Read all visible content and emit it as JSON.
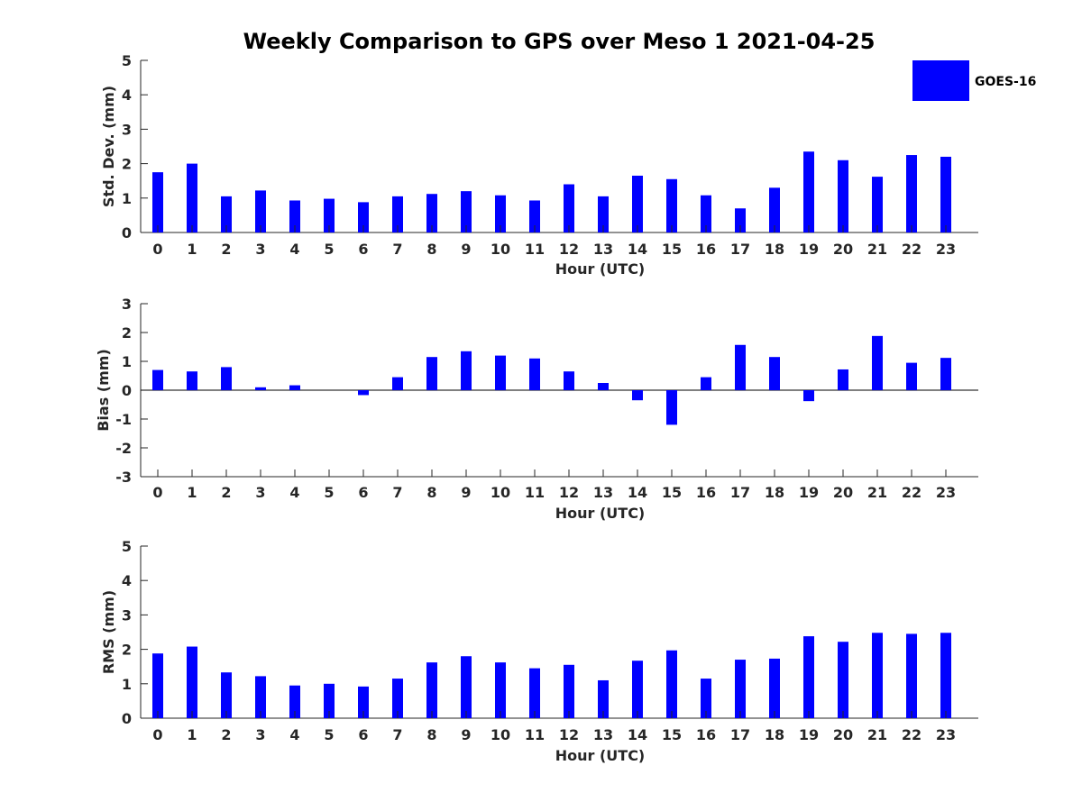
{
  "title": "Weekly Comparison to GPS over Meso 1 2021-04-25",
  "legend": {
    "label": "GOES-16",
    "color": "#0000ff",
    "placement": "top-right"
  },
  "chart_data": [
    {
      "type": "bar",
      "name": "std-dev",
      "categories": [
        "0",
        "1",
        "2",
        "3",
        "4",
        "5",
        "6",
        "7",
        "8",
        "9",
        "10",
        "11",
        "12",
        "13",
        "14",
        "15",
        "16",
        "17",
        "18",
        "19",
        "20",
        "21",
        "22",
        "23"
      ],
      "series": [
        {
          "name": "GOES-16",
          "values": [
            1.75,
            2.0,
            1.05,
            1.22,
            0.93,
            0.98,
            0.88,
            1.05,
            1.12,
            1.2,
            1.08,
            0.93,
            1.4,
            1.05,
            1.65,
            1.55,
            1.08,
            0.7,
            1.3,
            2.35,
            2.1,
            1.62,
            2.25,
            2.2
          ]
        }
      ],
      "xlabel": "Hour (UTC)",
      "ylabel": "Std. Dev. (mm)",
      "ylim": [
        0,
        5
      ],
      "yticks": [
        "0",
        "1",
        "2",
        "3",
        "4",
        "5"
      ],
      "color": "#0000ff"
    },
    {
      "type": "bar",
      "name": "bias",
      "categories": [
        "0",
        "1",
        "2",
        "3",
        "4",
        "5",
        "6",
        "7",
        "8",
        "9",
        "10",
        "11",
        "12",
        "13",
        "14",
        "15",
        "16",
        "17",
        "18",
        "19",
        "20",
        "21",
        "22",
        "23"
      ],
      "series": [
        {
          "name": "GOES-16",
          "values": [
            0.7,
            0.65,
            0.8,
            0.1,
            0.17,
            0.0,
            -0.17,
            0.45,
            1.15,
            1.35,
            1.2,
            1.1,
            0.65,
            0.25,
            -0.35,
            -1.2,
            0.45,
            1.57,
            1.15,
            -0.38,
            0.72,
            1.88,
            0.95,
            1.12
          ]
        }
      ],
      "xlabel": "Hour (UTC)",
      "ylabel": "Bias (mm)",
      "ylim": [
        -3,
        3
      ],
      "yticks": [
        "-3",
        "-2",
        "-1",
        "0",
        "1",
        "2",
        "3"
      ],
      "color": "#0000ff"
    },
    {
      "type": "bar",
      "name": "rms",
      "categories": [
        "0",
        "1",
        "2",
        "3",
        "4",
        "5",
        "6",
        "7",
        "8",
        "9",
        "10",
        "11",
        "12",
        "13",
        "14",
        "15",
        "16",
        "17",
        "18",
        "19",
        "20",
        "21",
        "22",
        "23"
      ],
      "series": [
        {
          "name": "GOES-16",
          "values": [
            1.88,
            2.08,
            1.33,
            1.22,
            0.95,
            1.0,
            0.92,
            1.15,
            1.62,
            1.8,
            1.62,
            1.45,
            1.55,
            1.1,
            1.67,
            1.97,
            1.15,
            1.7,
            1.73,
            2.38,
            2.22,
            2.48,
            2.45,
            2.48
          ]
        }
      ],
      "xlabel": "Hour (UTC)",
      "ylabel": "RMS (mm)",
      "ylim": [
        0,
        5
      ],
      "yticks": [
        "0",
        "1",
        "2",
        "3",
        "4",
        "5"
      ],
      "color": "#0000ff"
    }
  ]
}
